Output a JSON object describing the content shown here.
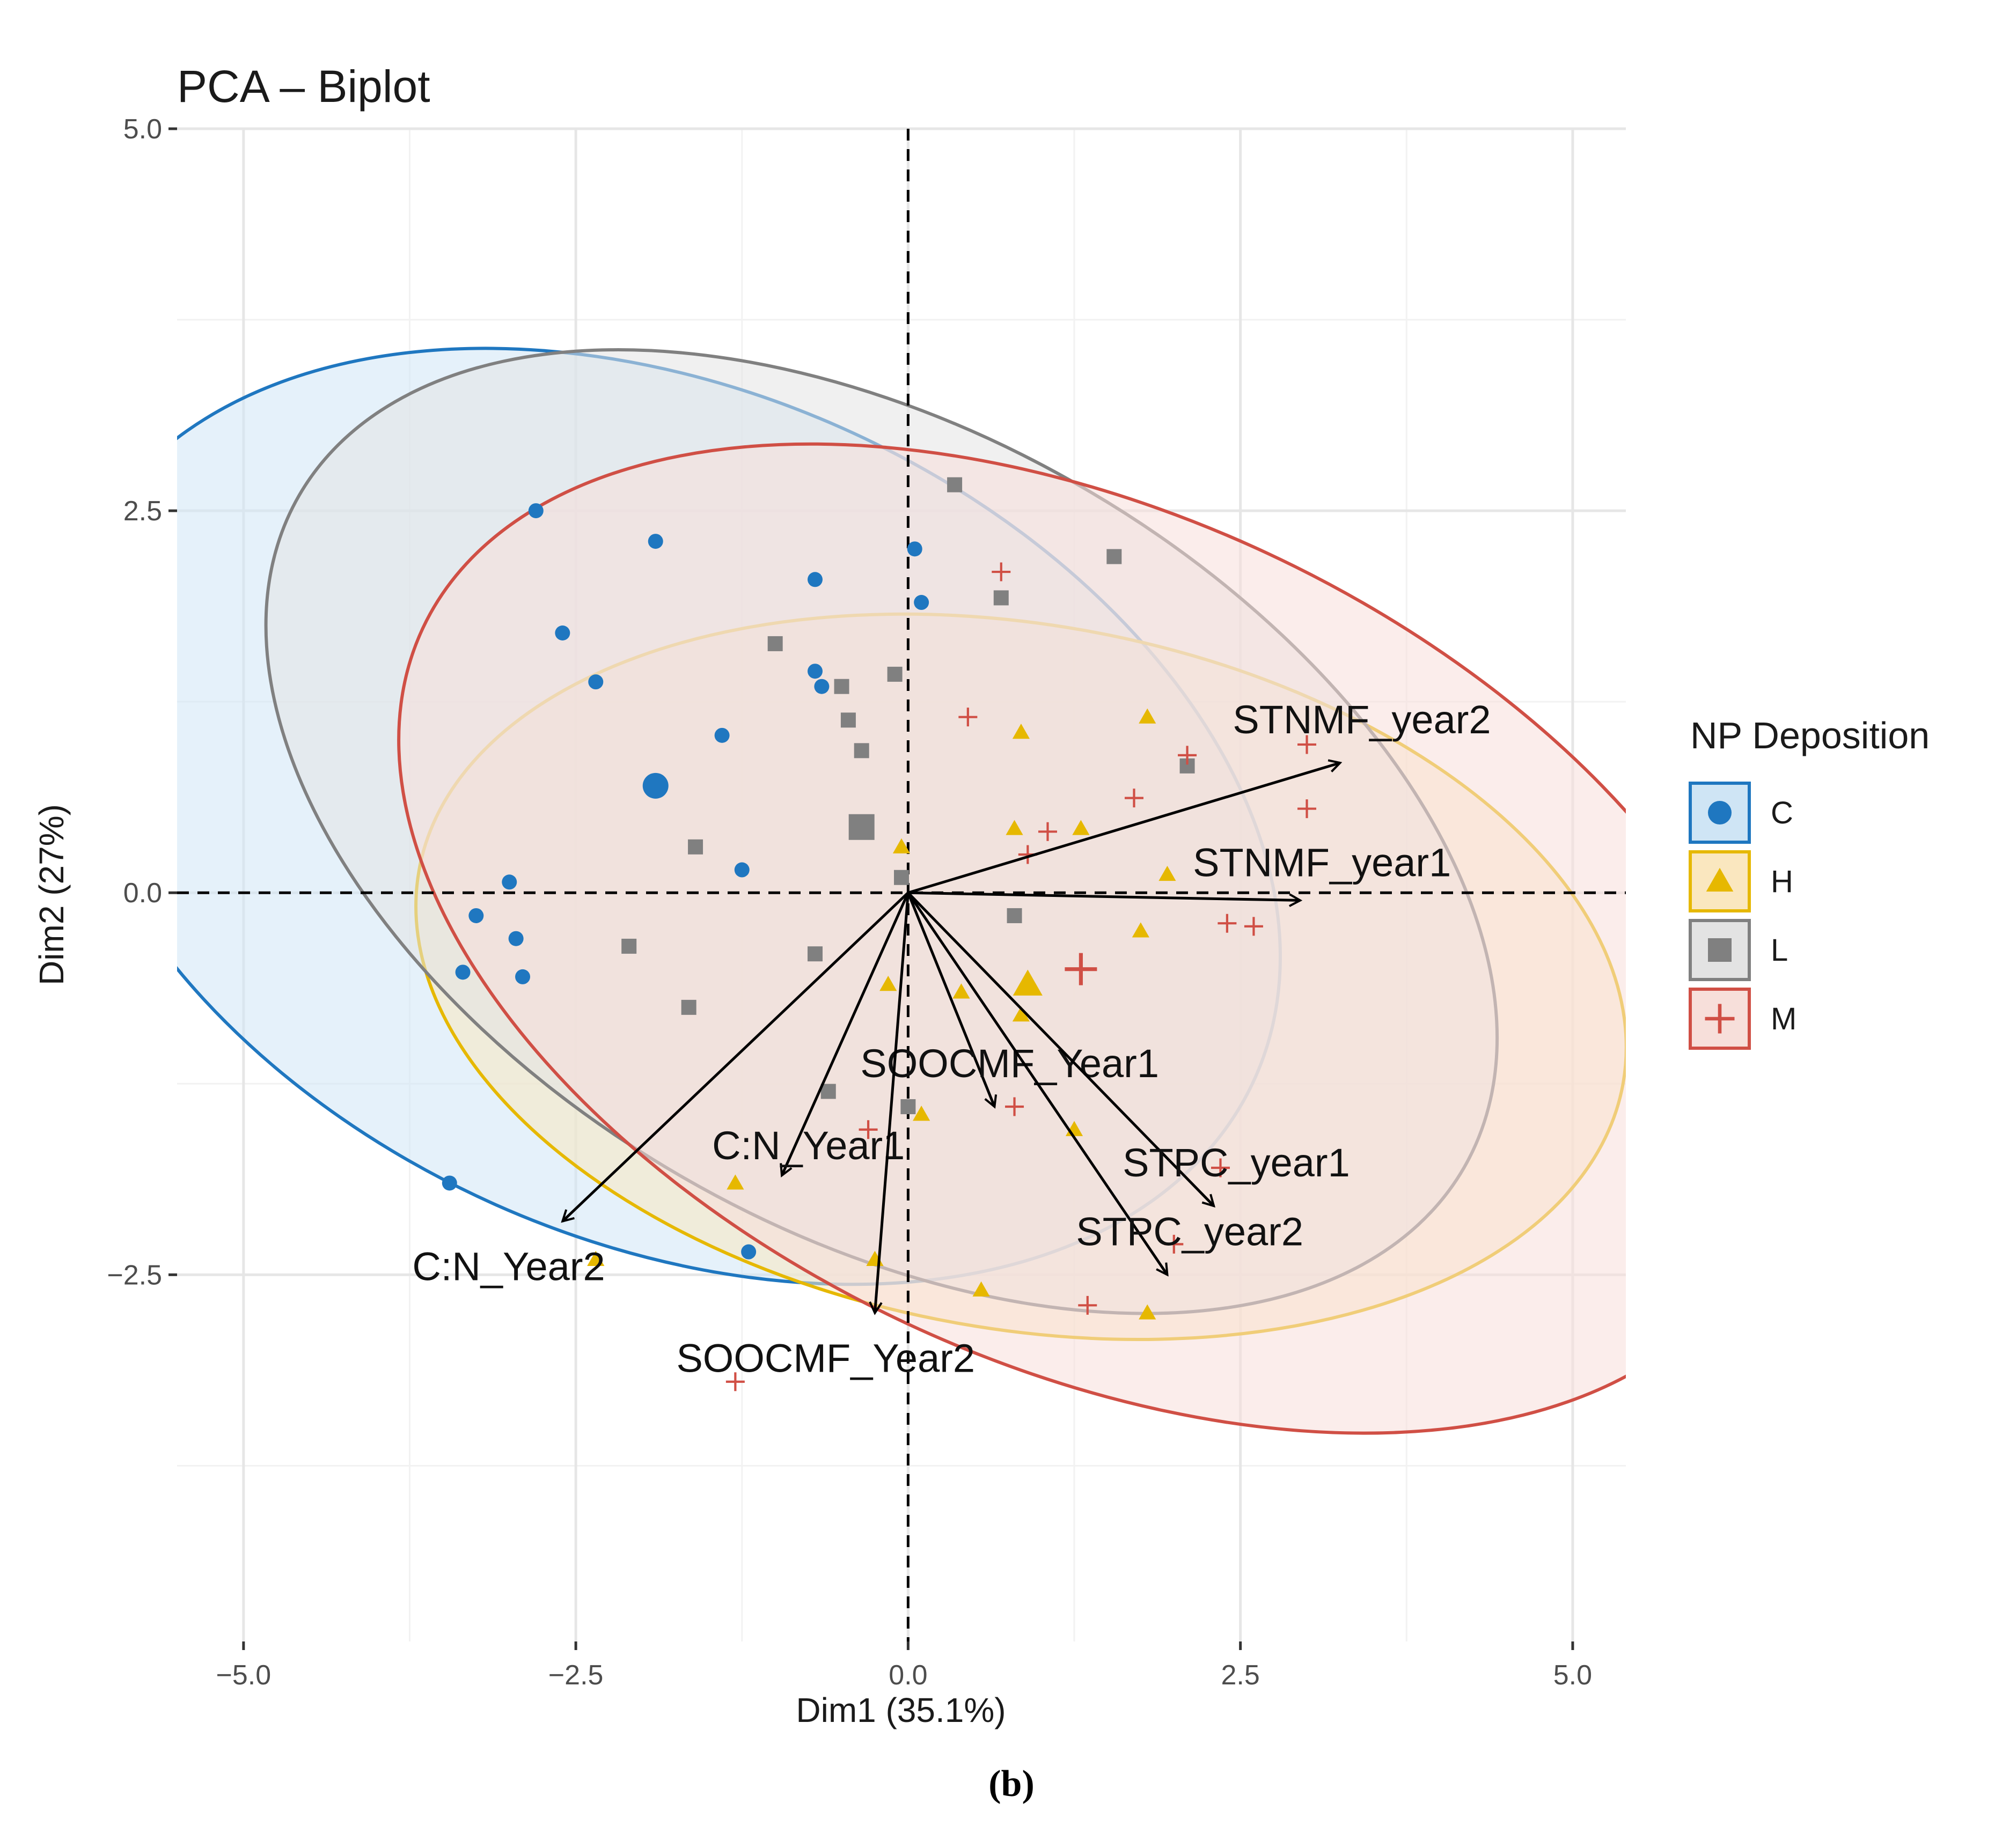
{
  "chart_data": {
    "type": "scatter",
    "subtype": "pca-biplot",
    "title": "PCA – Biplot",
    "xlabel": "Dim1 (35.1%)",
    "ylabel": "Dim2 (27%)",
    "xlim": [
      -5.5,
      5.4
    ],
    "ylim": [
      -4.9,
      5.0
    ],
    "xticks": [
      -5.0,
      -2.5,
      0.0,
      2.5,
      5.0
    ],
    "xtick_labels": [
      "−5.0",
      "−2.5",
      "0.0",
      "2.5",
      "5.0"
    ],
    "yticks": [
      -2.5,
      0.0,
      2.5,
      5.0
    ],
    "ytick_labels": [
      "−2.5",
      "0.0",
      "2.5",
      "5.0"
    ],
    "caption": "(b)",
    "legend": {
      "title": "NP Deposition",
      "position": "right",
      "entries": [
        {
          "label": "C",
          "shape": "circle",
          "color": "#1f77c0"
        },
        {
          "label": "H",
          "shape": "triangle",
          "color": "#e6b800"
        },
        {
          "label": "L",
          "shape": "square",
          "color": "#808080"
        },
        {
          "label": "M",
          "shape": "cross",
          "color": "#d04f45"
        }
      ]
    },
    "groups": [
      {
        "name": "C",
        "shape": "circle",
        "color": "#1f77c0",
        "fill": "#cfe5f5",
        "ellipse": {
          "cx": -1.8,
          "cy": 0.5,
          "rx": 3.2,
          "ry": 4.2,
          "angle_deg": 66
        },
        "centroid": [
          -1.9,
          0.7
        ],
        "points": [
          [
            -2.8,
            2.5
          ],
          [
            -1.9,
            2.3
          ],
          [
            -0.7,
            2.05
          ],
          [
            0.05,
            2.25
          ],
          [
            0.1,
            1.9
          ],
          [
            -2.6,
            1.7
          ],
          [
            -2.35,
            1.38
          ],
          [
            -0.7,
            1.45
          ],
          [
            -0.65,
            1.35
          ],
          [
            -1.4,
            1.03
          ],
          [
            -1.25,
            0.15
          ],
          [
            -3.0,
            0.07
          ],
          [
            -3.25,
            -0.15
          ],
          [
            -2.95,
            -0.3
          ],
          [
            -2.9,
            -0.55
          ],
          [
            -3.35,
            -0.52
          ],
          [
            -3.45,
            -1.9
          ],
          [
            -1.2,
            -2.35
          ]
        ]
      },
      {
        "name": "H",
        "shape": "triangle",
        "color": "#e6b800",
        "fill": "#fae7bf",
        "ellipse": {
          "cx": 0.85,
          "cy": -0.55,
          "rx": 2.65,
          "ry": 4.0,
          "angle_deg": 80
        },
        "centroid": [
          0.9,
          -0.6
        ],
        "points": [
          [
            1.8,
            1.15
          ],
          [
            0.85,
            1.05
          ],
          [
            1.3,
            0.42
          ],
          [
            0.8,
            0.42
          ],
          [
            -0.05,
            0.3
          ],
          [
            1.95,
            0.12
          ],
          [
            1.75,
            -0.25
          ],
          [
            -0.15,
            -0.6
          ],
          [
            0.4,
            -0.65
          ],
          [
            0.85,
            -0.8
          ],
          [
            0.1,
            -1.45
          ],
          [
            1.25,
            -1.55
          ],
          [
            -1.3,
            -1.9
          ],
          [
            -0.25,
            -2.4
          ],
          [
            0.55,
            -2.6
          ],
          [
            1.8,
            -2.75
          ],
          [
            -2.35,
            -2.4
          ]
        ]
      },
      {
        "name": "L",
        "shape": "square",
        "color": "#808080",
        "fill": "#e3e3e3",
        "ellipse": {
          "cx": -0.2,
          "cy": 0.4,
          "rx": 3.0,
          "ry": 4.4,
          "angle_deg": 60
        },
        "centroid": [
          -0.35,
          0.43
        ],
        "points": [
          [
            0.35,
            2.67
          ],
          [
            1.55,
            2.2
          ],
          [
            0.7,
            1.93
          ],
          [
            -1.0,
            1.63
          ],
          [
            -0.5,
            1.35
          ],
          [
            -0.1,
            1.43
          ],
          [
            -0.45,
            1.13
          ],
          [
            -0.35,
            0.93
          ],
          [
            2.1,
            0.83
          ],
          [
            -1.6,
            0.3
          ],
          [
            -0.05,
            0.1
          ],
          [
            0.8,
            -0.15
          ],
          [
            -2.1,
            -0.35
          ],
          [
            -0.7,
            -0.4
          ],
          [
            -1.65,
            -0.75
          ],
          [
            -0.6,
            -1.3
          ],
          [
            0.0,
            -1.4
          ]
        ]
      },
      {
        "name": "M",
        "shape": "cross",
        "color": "#d04f45",
        "fill": "#f7dfda",
        "ellipse": {
          "cx": 1.35,
          "cy": -0.3,
          "rx": 3.2,
          "ry": 4.8,
          "angle_deg": 65
        },
        "centroid": [
          1.3,
          -0.5
        ],
        "points": [
          [
            0.7,
            2.1
          ],
          [
            0.45,
            1.15
          ],
          [
            2.1,
            0.9
          ],
          [
            1.7,
            0.62
          ],
          [
            1.05,
            0.4
          ],
          [
            0.9,
            0.25
          ],
          [
            3.0,
            0.97
          ],
          [
            3.0,
            0.55
          ],
          [
            2.4,
            -0.2
          ],
          [
            2.6,
            -0.22
          ],
          [
            0.8,
            -1.4
          ],
          [
            2.35,
            -1.8
          ],
          [
            2.0,
            -2.3
          ],
          [
            1.35,
            -2.7
          ],
          [
            -1.3,
            -3.2
          ],
          [
            -0.3,
            -1.55
          ]
        ]
      }
    ],
    "variables": [
      {
        "name": "STNMF_year2",
        "x": 3.25,
        "y": 0.85
      },
      {
        "name": "STNMF_year1",
        "x": 2.95,
        "y": -0.05
      },
      {
        "name": "SOOCMF_Year1",
        "x": 0.65,
        "y": -1.4
      },
      {
        "name": "C:N_Year1",
        "x": -0.95,
        "y": -1.85
      },
      {
        "name": "STPC_year1",
        "x": 2.3,
        "y": -2.05
      },
      {
        "name": "STPC_year2",
        "x": 1.95,
        "y": -2.5
      },
      {
        "name": "C:N_Year2",
        "x": -2.6,
        "y": -2.15
      },
      {
        "name": "SOOCMF_Year2",
        "x": -0.25,
        "y": -2.75
      }
    ]
  }
}
